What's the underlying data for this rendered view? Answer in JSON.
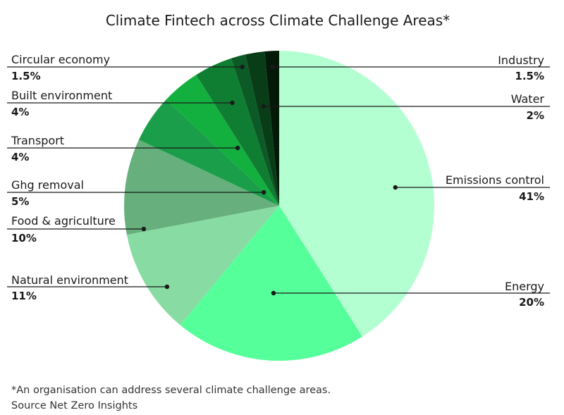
{
  "chart_data": {
    "type": "pie",
    "title": "Climate Fintech across Climate Challenge Areas*",
    "start_angle_deg": 0,
    "direction": "clockwise",
    "slices": [
      {
        "label": "Emissions control",
        "value": 41,
        "value_label": "41%",
        "color": "#b3ffd2"
      },
      {
        "label": "Energy",
        "value": 20,
        "value_label": "20%",
        "color": "#55ff9a"
      },
      {
        "label": "Natural environment",
        "value": 11,
        "value_label": "11%",
        "color": "#88dca3"
      },
      {
        "label": "Food & agriculture",
        "value": 10,
        "value_label": "10%",
        "color": "#67b07d"
      },
      {
        "label": "Ghg removal",
        "value": 5,
        "value_label": "5%",
        "color": "#1a9e49"
      },
      {
        "label": "Transport",
        "value": 4,
        "value_label": "4%",
        "color": "#13b03f"
      },
      {
        "label": "Built environment",
        "value": 4,
        "value_label": "4%",
        "color": "#0f7e32"
      },
      {
        "label": "Circular economy",
        "value": 1.5,
        "value_label": "1.5%",
        "color": "#0c5a25"
      },
      {
        "label": "Water",
        "value": 2,
        "value_label": "2%",
        "color": "#083d18"
      },
      {
        "label": "Industry",
        "value": 1.5,
        "value_label": "1.5%",
        "color": "#031a08"
      }
    ]
  },
  "footnote": {
    "line1": "*An organisation can address several climate challenge areas.",
    "line2": "Source Net Zero Insights"
  }
}
